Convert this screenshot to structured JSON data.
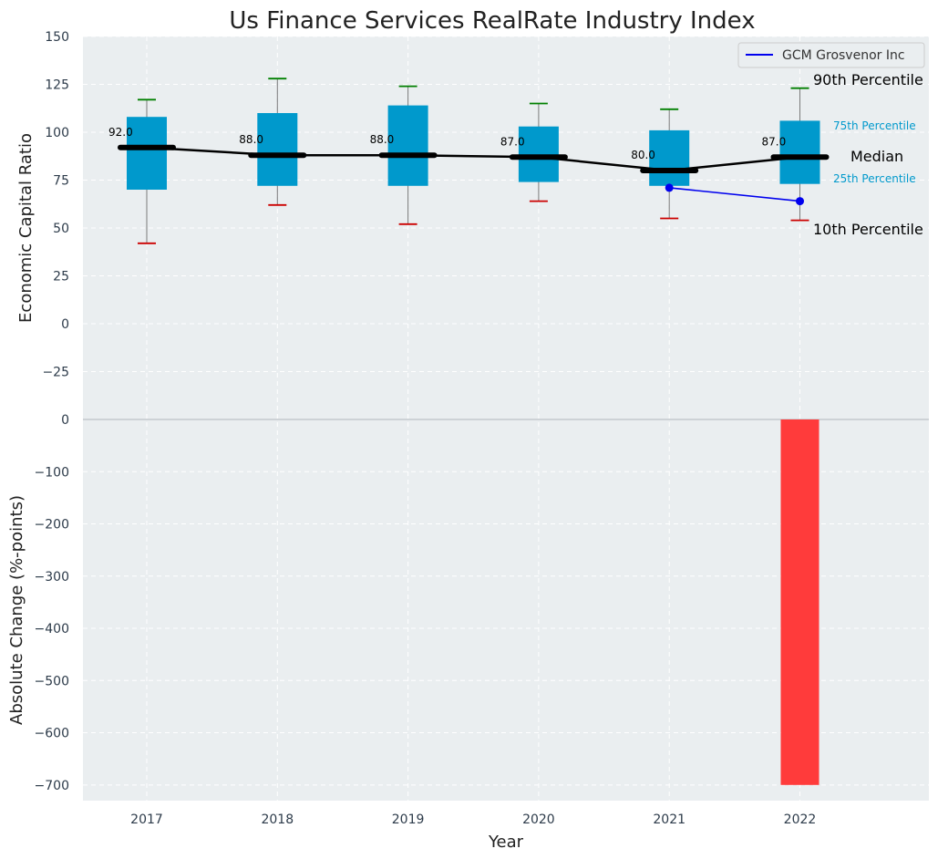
{
  "chart_data": [
    {
      "type": "box",
      "title": "Us Finance Services RealRate Industry Index",
      "xlabel": "",
      "ylabel": "Economic Capital Ratio",
      "ylim": [
        -50,
        150
      ],
      "yticks": [
        150,
        125,
        100,
        75,
        50,
        25,
        0,
        -25
      ],
      "ytick_labels": [
        "150",
        "125",
        "100",
        "75",
        "50",
        "25",
        "0",
        "−25"
      ],
      "grid": true,
      "categories": [
        "2017",
        "2018",
        "2019",
        "2020",
        "2021",
        "2022"
      ],
      "boxes": [
        {
          "year": "2017",
          "p10": 42,
          "p25": 70,
          "median": 92,
          "p75": 108,
          "p90": 117
        },
        {
          "year": "2018",
          "p10": 62,
          "p25": 72,
          "median": 88,
          "p75": 110,
          "p90": 128
        },
        {
          "year": "2019",
          "p10": 52,
          "p25": 72,
          "median": 88,
          "p75": 114,
          "p90": 124
        },
        {
          "year": "2020",
          "p10": 64,
          "p25": 74,
          "median": 87,
          "p75": 103,
          "p90": 115
        },
        {
          "year": "2021",
          "p10": 55,
          "p25": 72,
          "median": 80,
          "p75": 101,
          "p90": 112
        },
        {
          "year": "2022",
          "p10": 54,
          "p25": 73,
          "median": 87,
          "p75": 106,
          "p90": 123
        }
      ],
      "median_labels": [
        "92.0",
        "88.0",
        "88.0",
        "87.0",
        "80.0",
        "87.0"
      ],
      "series": [
        {
          "name": "GCM Grosvenor Inc",
          "color": "#0000ee",
          "x": [
            "2021",
            "2022"
          ],
          "values": [
            71,
            64
          ]
        }
      ],
      "legend": {
        "position": "top-right",
        "entries": [
          "GCM Grosvenor Inc"
        ]
      },
      "percentile_labels": {
        "p90": "90th Percentile",
        "p75": "75th Percentile",
        "median": "Median",
        "p25": "25th Percentile",
        "p10": "10th Percentile"
      },
      "colors": {
        "box": "#0099cc",
        "median_line": "#000000",
        "whisker_top": "#008000",
        "whisker_bottom": "#cc0000",
        "background": "#eaeef0"
      }
    },
    {
      "type": "bar",
      "xlabel": "Year",
      "ylabel": "Absolute Change (%-points)",
      "ylim": [
        -730,
        0
      ],
      "yticks": [
        0,
        -100,
        -200,
        -300,
        -400,
        -500,
        -600,
        -700
      ],
      "ytick_labels": [
        "0",
        "−100",
        "−200",
        "−300",
        "−400",
        "−500",
        "−600",
        "−700"
      ],
      "grid": true,
      "categories": [
        "2017",
        "2018",
        "2019",
        "2020",
        "2021",
        "2022"
      ],
      "values": [
        0,
        0,
        0,
        0,
        0,
        -700
      ],
      "colors": {
        "bar": "#ff3b3b"
      }
    }
  ]
}
